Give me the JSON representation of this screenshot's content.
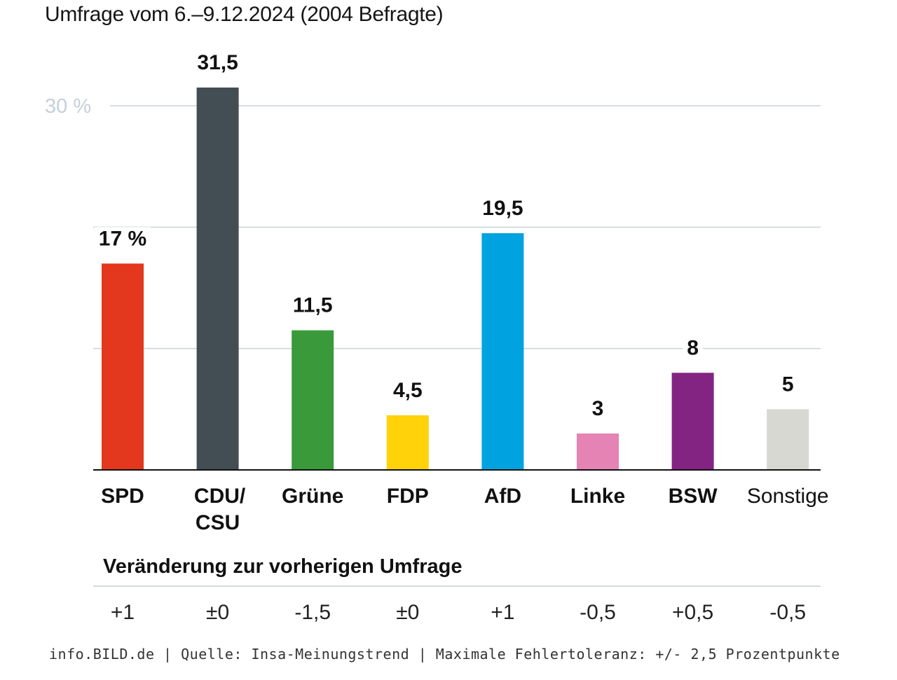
{
  "chart_data": {
    "type": "bar",
    "title": "Umfrage vom 6.–9.12.2024 (2004 Befragte)",
    "xlabel": "",
    "ylabel": "",
    "ylim": [
      0,
      30
    ],
    "grid": true,
    "yticks": [
      10,
      20,
      30
    ],
    "ytick_labels": [
      "",
      "",
      "30 %"
    ],
    "categories": [
      "SPD",
      "CDU/\nCSU",
      "Grüne",
      "FDP",
      "AfD",
      "Linke",
      "BSW",
      "Sonstige"
    ],
    "values": [
      17,
      31.5,
      11.5,
      4.5,
      19.5,
      3,
      8,
      5
    ],
    "value_labels": [
      "17 %",
      "31,5",
      "11,5",
      "4,5",
      "19,5",
      "3",
      "8",
      "5"
    ],
    "colors": [
      "#e3371e",
      "#434e54",
      "#3a9a3b",
      "#ffd20a",
      "#00a3e0",
      "#e583b4",
      "#832482",
      "#d8d8d2"
    ],
    "change_title": "Veränderung zur vorherigen Umfrage",
    "changes": [
      1,
      0,
      -1.5,
      0,
      1,
      -0.5,
      0.5,
      -0.5
    ],
    "change_labels": [
      "+1",
      "±0",
      "-1,5",
      "±0",
      "+1",
      "-0,5",
      "+0,5",
      "-0,5"
    ]
  },
  "header": {
    "subtitle": "Umfrage vom 6.–9.12.2024 (2004 Befragte)"
  },
  "footer": {
    "text": "info.BILD.de | Quelle: Insa-Meinungstrend | Maximale Fehlertoleranz: +/- 2,5 Prozentpunkte"
  },
  "theme": {
    "gridline": "#c9d3da",
    "axis": "#111111",
    "divider": "#c9ced2"
  }
}
